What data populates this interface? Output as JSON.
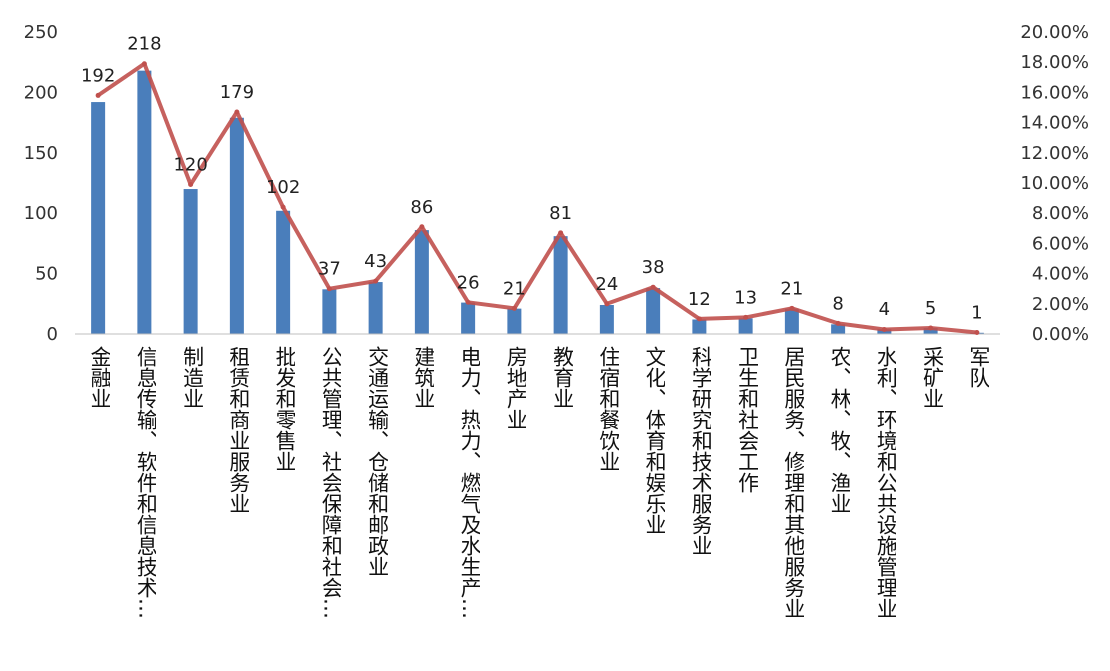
{
  "chart_data": {
    "type": "bar",
    "categories": [
      "金融业",
      "信息传输、软件和信息技术…",
      "制造业",
      "租赁和商业服务业",
      "批发和零售业",
      "公共管理、社会保障和社会…",
      "交通运输、仓储和邮政业",
      "建筑业",
      "电力、热力、燃气及水生产…",
      "房地产业",
      "教育业",
      "住宿和餐饮业",
      "文化、体育和娱乐业",
      "科学研究和技术服务业",
      "卫生和社会工作",
      "居民服务、修理和其他服务业",
      "农、林、牧、渔业",
      "水利、环境和公共设施管理业",
      "采矿业",
      "军队"
    ],
    "series": [
      {
        "type": "bar",
        "axis": "left",
        "values": [
          192,
          218,
          120,
          179,
          102,
          37,
          43,
          86,
          26,
          21,
          81,
          24,
          38,
          12,
          13,
          21,
          8,
          4,
          5,
          1
        ]
      },
      {
        "type": "line",
        "axis": "right",
        "values": [
          15.8,
          17.9,
          9.9,
          14.7,
          8.4,
          3.0,
          3.5,
          7.1,
          2.1,
          1.7,
          6.7,
          2.0,
          3.1,
          1.0,
          1.1,
          1.7,
          0.7,
          0.3,
          0.4,
          0.1
        ]
      }
    ],
    "data_labels": [
      "192",
      "218",
      "120",
      "179",
      "102",
      "37",
      "43",
      "86",
      "26",
      "21",
      "81",
      "24",
      "38",
      "12",
      "13",
      "21",
      "8",
      "4",
      "5",
      "1"
    ],
    "y_left": {
      "lim": [
        0,
        250
      ],
      "ticks": [
        0,
        50,
        100,
        150,
        200,
        250
      ],
      "tick_labels": [
        "0",
        "50",
        "100",
        "150",
        "200",
        "250"
      ]
    },
    "y_right": {
      "lim": [
        0,
        20
      ],
      "ticks": [
        0,
        2,
        4,
        6,
        8,
        10,
        12,
        14,
        16,
        18,
        20
      ],
      "tick_labels": [
        "0.00%",
        "2.00%",
        "4.00%",
        "6.00%",
        "8.00%",
        "10.00%",
        "12.00%",
        "14.00%",
        "16.00%",
        "18.00%",
        "20.00%"
      ]
    },
    "grid": false,
    "legend": "none",
    "colors": {
      "bar": "#4a7ebb",
      "line": "#c0504d"
    }
  }
}
